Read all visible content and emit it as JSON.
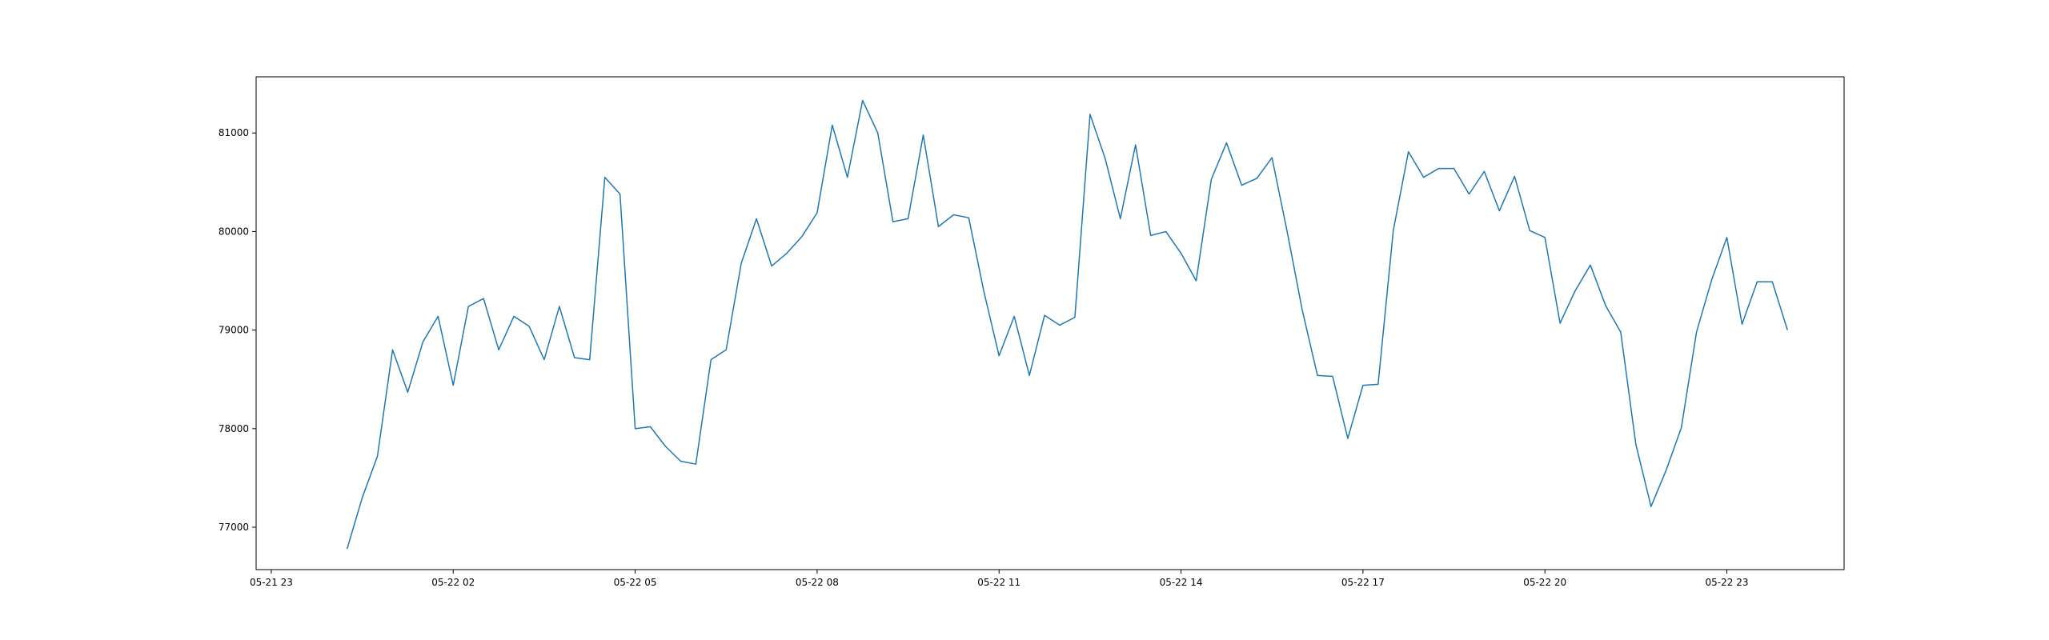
{
  "chart_data": {
    "type": "line",
    "title": "",
    "xlabel": "",
    "ylabel": "",
    "x_start": "2024-05-22T00:15",
    "x_step_minutes": 15,
    "xlim": [
      "2024-05-21T22:45",
      "2024-05-23T00:56"
    ],
    "ylim": [
      76570,
      81570
    ],
    "xticks": [
      {
        "t": "2024-05-21T23:00",
        "label": "05-21 23"
      },
      {
        "t": "2024-05-22T02:00",
        "label": "05-22 02"
      },
      {
        "t": "2024-05-22T05:00",
        "label": "05-22 05"
      },
      {
        "t": "2024-05-22T08:00",
        "label": "05-22 08"
      },
      {
        "t": "2024-05-22T11:00",
        "label": "05-22 11"
      },
      {
        "t": "2024-05-22T14:00",
        "label": "05-22 14"
      },
      {
        "t": "2024-05-22T17:00",
        "label": "05-22 17"
      },
      {
        "t": "2024-05-22T20:00",
        "label": "05-22 20"
      },
      {
        "t": "2024-05-22T23:00",
        "label": "05-22 23"
      }
    ],
    "yticks": [
      77000,
      78000,
      79000,
      80000,
      81000
    ],
    "grid": false,
    "series": [
      {
        "color": "#1f77b4",
        "values": [
          76780,
          77300,
          77720,
          78800,
          78370,
          78880,
          79140,
          78440,
          79240,
          79320,
          78800,
          79140,
          79040,
          78700,
          79240,
          78720,
          78700,
          80550,
          80380,
          78000,
          78020,
          77820,
          77670,
          77640,
          78700,
          78800,
          79680,
          80130,
          79650,
          79780,
          79950,
          80190,
          81080,
          80550,
          81330,
          81000,
          80100,
          80130,
          80980,
          80050,
          80170,
          80140,
          79390,
          78740,
          79140,
          78540,
          79150,
          79050,
          79130,
          81190,
          80740,
          80130,
          80880,
          79960,
          80000,
          79780,
          79500,
          80530,
          80900,
          80470,
          80540,
          80750,
          80000,
          79200,
          78540,
          78530,
          77900,
          78440,
          78450,
          80010,
          80810,
          80550,
          80640,
          80640,
          80380,
          80610,
          80210,
          80560,
          80010,
          79940,
          79070,
          79400,
          79660,
          79250,
          78980,
          77840,
          77210,
          77580,
          78010,
          78980,
          79510,
          79940,
          79060,
          79490,
          79490,
          79000
        ]
      }
    ]
  }
}
